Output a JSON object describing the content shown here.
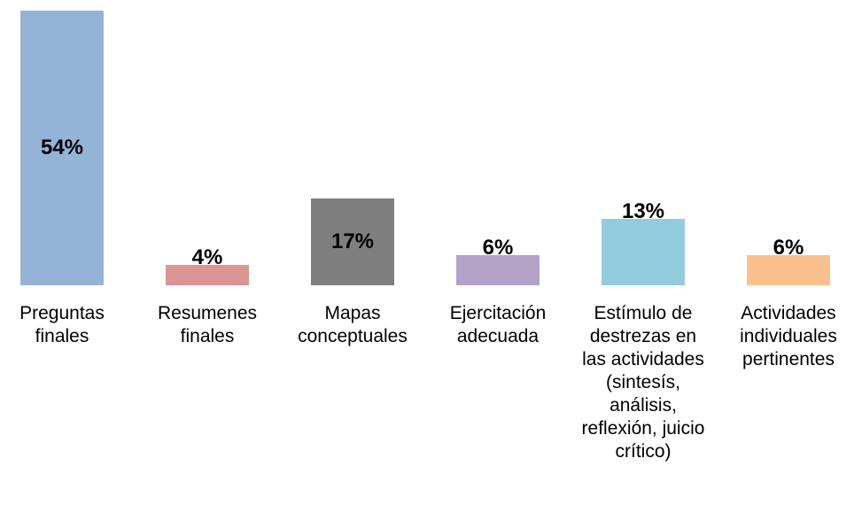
{
  "chart_data": {
    "type": "bar",
    "categories": [
      "Preguntas finales",
      "Resumenes finales",
      "Mapas conceptuales",
      "Ejercitación adecuada",
      "Estímulo de destrezas en las actividades (sintesís, análisis, reflexión, juicio crítico)",
      "Actividades individuales pertinentes"
    ],
    "values": [
      54,
      4,
      17,
      6,
      13,
      6
    ],
    "value_labels": [
      "54%",
      "4%",
      "17%",
      "6%",
      "13%",
      "6%"
    ],
    "colors": [
      "#95b3d7",
      "#d99694",
      "#7f7f7f",
      "#b3a2c7",
      "#93cddd",
      "#fac090"
    ]
  }
}
